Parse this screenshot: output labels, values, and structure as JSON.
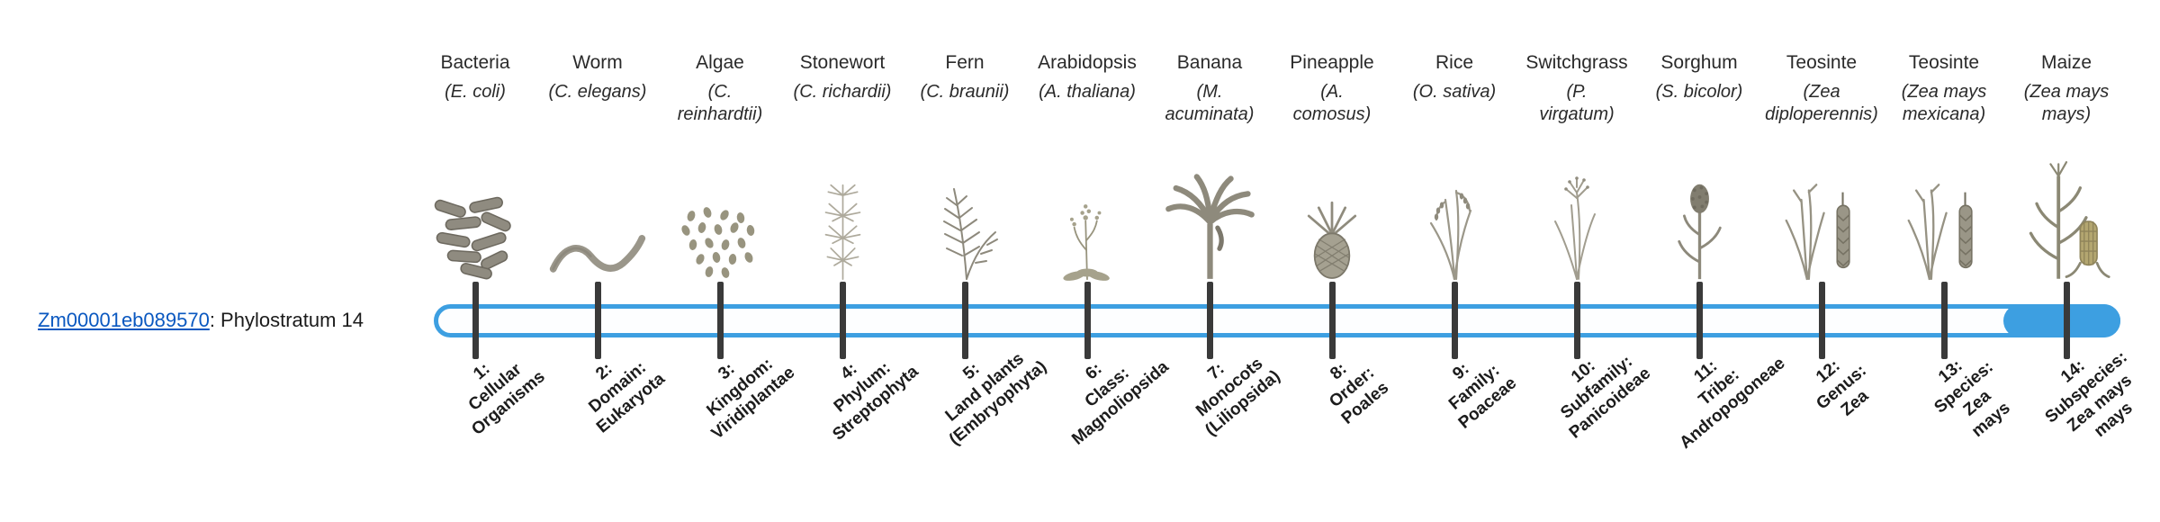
{
  "gene": {
    "id": "Zm00001eb089570",
    "label_suffix": ": Phylostratum 14"
  },
  "colors": {
    "track_blue": "#3d9fe1",
    "link_blue": "#0a58c0",
    "tick": "#3a3a3a",
    "text_dark": "#1f1f1f",
    "illustration_gray": "#938f82"
  },
  "timeline": {
    "highlighted_stage": "14",
    "organisms": [
      {
        "name": "Bacteria",
        "sci": "(E. coli)",
        "icon": "bacteria",
        "stage_label": "1:\nCellular\nOrganisms"
      },
      {
        "name": "Worm",
        "sci": "(C. elegans)",
        "icon": "worm",
        "stage_label": "2:\nDomain:\nEukaryota"
      },
      {
        "name": "Algae",
        "sci": "(C.\nreinhardtii)",
        "icon": "algae",
        "stage_label": "3:\nKingdom:\nViridiplantae"
      },
      {
        "name": "Stonewort",
        "sci": "(C. richardii)",
        "icon": "stonewort",
        "stage_label": "4:\nPhylum:\nStreptophyta"
      },
      {
        "name": "Fern",
        "sci": "(C. braunii)",
        "icon": "fern",
        "stage_label": "5:\nLand plants\n(Embryophyta)"
      },
      {
        "name": "Arabidopsis",
        "sci": "(A. thaliana)",
        "icon": "arabidopsis",
        "stage_label": "6:\nClass:\nMagnoliopsida"
      },
      {
        "name": "Banana",
        "sci": "(M.\nacuminata)",
        "icon": "banana",
        "stage_label": "7:\nMonocots\n(Liliopsida)"
      },
      {
        "name": "Pineapple",
        "sci": "(A.\ncomosus)",
        "icon": "pineapple",
        "stage_label": "8:\nOrder:\nPoales"
      },
      {
        "name": "Rice",
        "sci": "(O. sativa)",
        "icon": "rice",
        "stage_label": "9:\nFamily:\nPoaceae"
      },
      {
        "name": "Switchgrass",
        "sci": "(P.\nvirgatum)",
        "icon": "switchgrass",
        "stage_label": "10:\nSubfamily:\nPanicoideae"
      },
      {
        "name": "Sorghum",
        "sci": "(S. bicolor)",
        "icon": "sorghum",
        "stage_label": "11:\nTribe:\nAndropogoneae"
      },
      {
        "name": "Teosinte",
        "sci": "(Zea\ndiploperennis)",
        "icon": "teosinte",
        "stage_label": "12:\nGenus:\nZea"
      },
      {
        "name": "Teosinte",
        "sci": "(Zea mays\nmexicana)",
        "icon": "teosinte",
        "stage_label": "13:\nSpecies:\nZea\nmays"
      },
      {
        "name": "Maize",
        "sci": "(Zea mays\nmays)",
        "icon": "maize",
        "stage_label": "14:\nSubspecies:\nZea mays\nmays"
      }
    ]
  }
}
